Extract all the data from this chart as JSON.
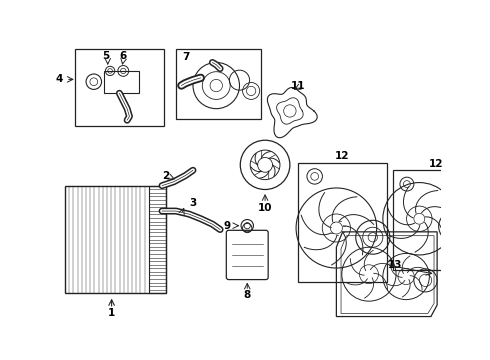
{
  "background_color": "#ffffff",
  "line_color": "#222222",
  "label_color": "#000000",
  "font_size": 7.5,
  "dpi": 100,
  "fig_w": 4.9,
  "fig_h": 3.6
}
